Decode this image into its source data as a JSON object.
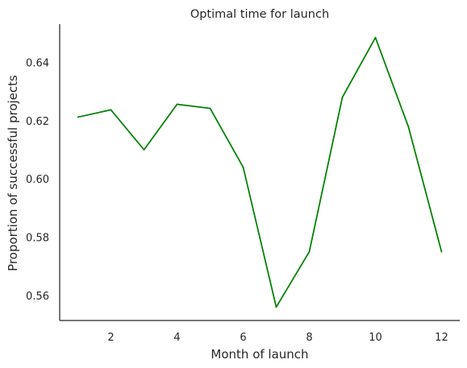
{
  "chart_data": {
    "type": "line",
    "title": "Optimal time for launch",
    "xlabel": "Month of launch",
    "ylabel": "Proportion of successful projects",
    "x": [
      1,
      2,
      3,
      4,
      5,
      6,
      7,
      8,
      9,
      10,
      11,
      12
    ],
    "series": [
      {
        "values": [
          0.6212,
          0.6237,
          0.61,
          0.6256,
          0.6242,
          0.604,
          0.556,
          0.575,
          0.628,
          0.6485,
          0.6178,
          0.575
        ],
        "color": "#008000"
      }
    ],
    "xticks": [
      2,
      4,
      6,
      8,
      10,
      12
    ],
    "yticks": [
      0.56,
      0.58,
      0.6,
      0.62,
      0.64
    ],
    "ytick_labels": [
      "0.56",
      "0.58",
      "0.60",
      "0.62",
      "0.64"
    ],
    "xlim": [
      0.45,
      12.55
    ],
    "ylim": [
      0.5514,
      0.6531
    ],
    "grid": false
  }
}
